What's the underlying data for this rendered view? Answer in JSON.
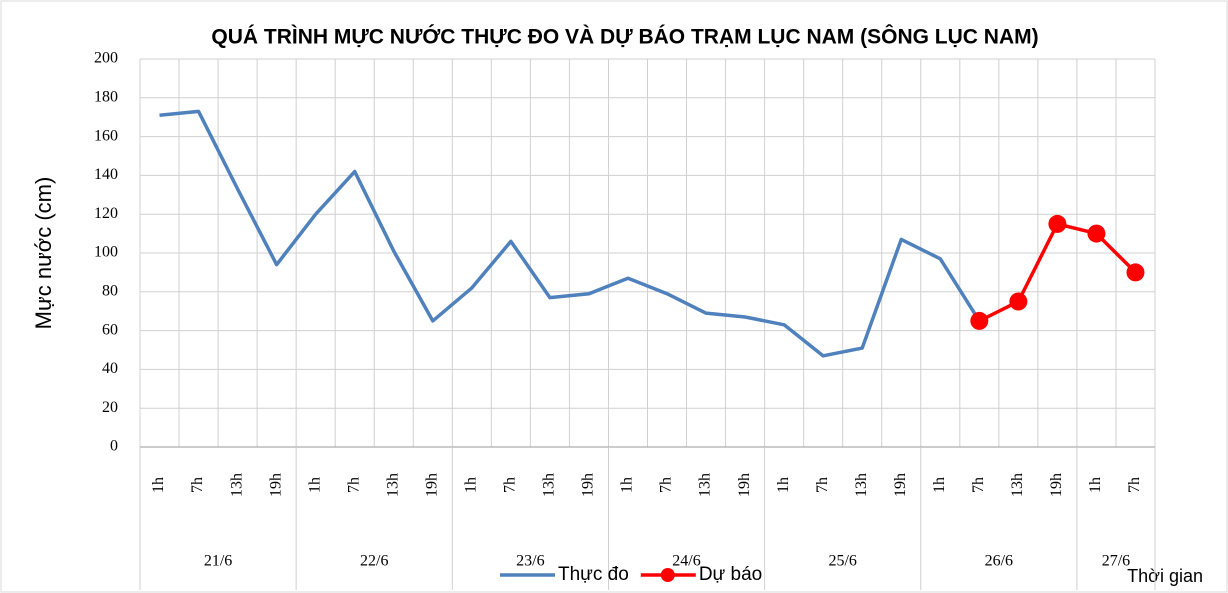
{
  "chart_data": {
    "type": "line",
    "title": "QUÁ TRÌNH MỰC NƯỚC THỰC ĐO VÀ DỰ BÁO TRẠM LỤC NAM (SÔNG LỤC NAM)",
    "y_label": "Mực nước (cm)",
    "x_label": "Thời gian",
    "groups": [
      {
        "name": "21/6",
        "categories": [
          "1h",
          "7h",
          "13h",
          "19h"
        ]
      },
      {
        "name": "22/6",
        "categories": [
          "1h",
          "7h",
          "13h",
          "19h"
        ]
      },
      {
        "name": "23/6",
        "categories": [
          "1h",
          "7h",
          "13h",
          "19h"
        ]
      },
      {
        "name": "24/6",
        "categories": [
          "1h",
          "7h",
          "13h",
          "19h"
        ]
      },
      {
        "name": "25/6",
        "categories": [
          "1h",
          "7h",
          "13h",
          "19h"
        ]
      },
      {
        "name": "26/6",
        "categories": [
          "1h",
          "7h",
          "13h",
          "19h"
        ]
      },
      {
        "name": "27/6",
        "categories": [
          "1h",
          "7h"
        ]
      }
    ],
    "series": [
      {
        "name": "Thực đo",
        "color": "#4f81bd",
        "marker": false,
        "values": [
          171,
          173,
          133,
          94,
          120,
          142,
          101,
          65,
          82,
          106,
          77,
          79,
          87,
          79,
          69,
          67,
          63,
          47,
          51,
          107,
          97,
          65,
          null,
          null,
          null,
          null
        ]
      },
      {
        "name": "Dự báo",
        "color": "#ff0000",
        "marker": true,
        "values": [
          null,
          null,
          null,
          null,
          null,
          null,
          null,
          null,
          null,
          null,
          null,
          null,
          null,
          null,
          null,
          null,
          null,
          null,
          null,
          null,
          null,
          65,
          75,
          115,
          110,
          90
        ]
      }
    ],
    "ylim": [
      0,
      200
    ],
    "yticks": [
      0,
      20,
      40,
      60,
      80,
      100,
      120,
      140,
      160,
      180,
      200
    ],
    "grid": true
  }
}
